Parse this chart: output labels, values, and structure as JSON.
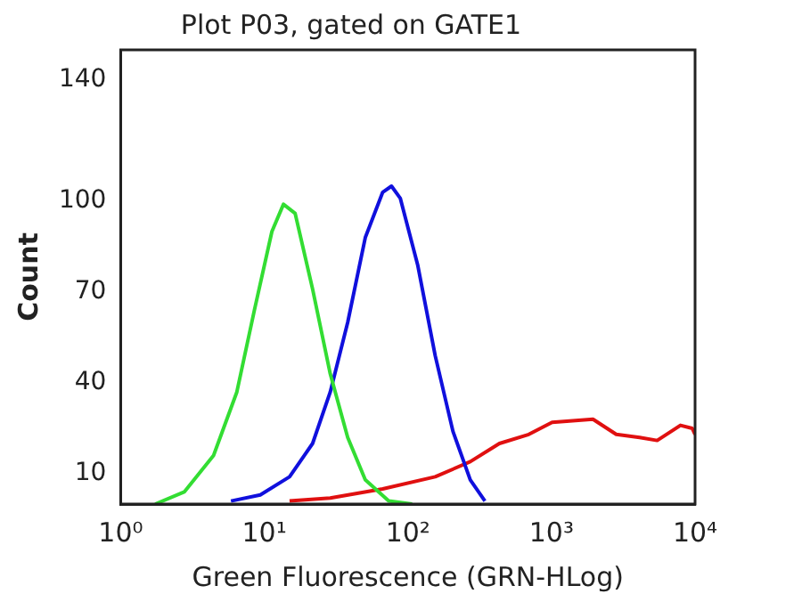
{
  "chart_data": {
    "type": "line",
    "title": "Plot P03, gated on GATE1",
    "xlabel": "Green Fluorescence (GRN-HLog)",
    "ylabel": "Count",
    "log": "x",
    "grid": false,
    "legend": false,
    "marker": "none",
    "line_style": "solid",
    "xlim": [
      1,
      10000
    ],
    "xticks": [
      {
        "value": 1,
        "label": "10⁰"
      },
      {
        "value": 10,
        "label": "10¹"
      },
      {
        "value": 100,
        "label": "10²"
      },
      {
        "value": 1000,
        "label": "10³"
      },
      {
        "value": 10000,
        "label": "10⁴"
      }
    ],
    "ylim": [
      0,
      150
    ],
    "yticks": [
      10,
      40,
      70,
      100,
      140
    ],
    "series": [
      {
        "color": "#33dd33",
        "x": [
          1.74,
          2.77,
          4.43,
          6.44,
          8.53,
          11.3,
          13.6,
          16.4,
          21.7,
          28.8,
          38.1,
          50.5,
          73.5,
          107
        ],
        "values": [
          0,
          4,
          16,
          37,
          64,
          90,
          99,
          96,
          71,
          43,
          22,
          8,
          1,
          0
        ]
      },
      {
        "color": "#1010dd",
        "x": [
          5.86,
          9.38,
          15.0,
          21.7,
          28.8,
          38.1,
          50.5,
          66.8,
          76.9,
          88.5,
          117,
          155,
          206,
          272,
          344
        ],
        "values": [
          1,
          3,
          9,
          20,
          37,
          60,
          88,
          103,
          105,
          101,
          79,
          49,
          24,
          8,
          1
        ]
      },
      {
        "color": "#e01010",
        "x": [
          15.0,
          28.8,
          66.8,
          155,
          272,
          434,
          695,
          1010,
          1945,
          2825,
          4111,
          5445,
          7907,
          9550,
          10000
        ],
        "values": [
          1,
          2,
          5,
          9,
          14,
          20,
          23,
          27,
          28,
          23,
          22,
          21,
          26,
          25,
          23
        ]
      }
    ]
  }
}
